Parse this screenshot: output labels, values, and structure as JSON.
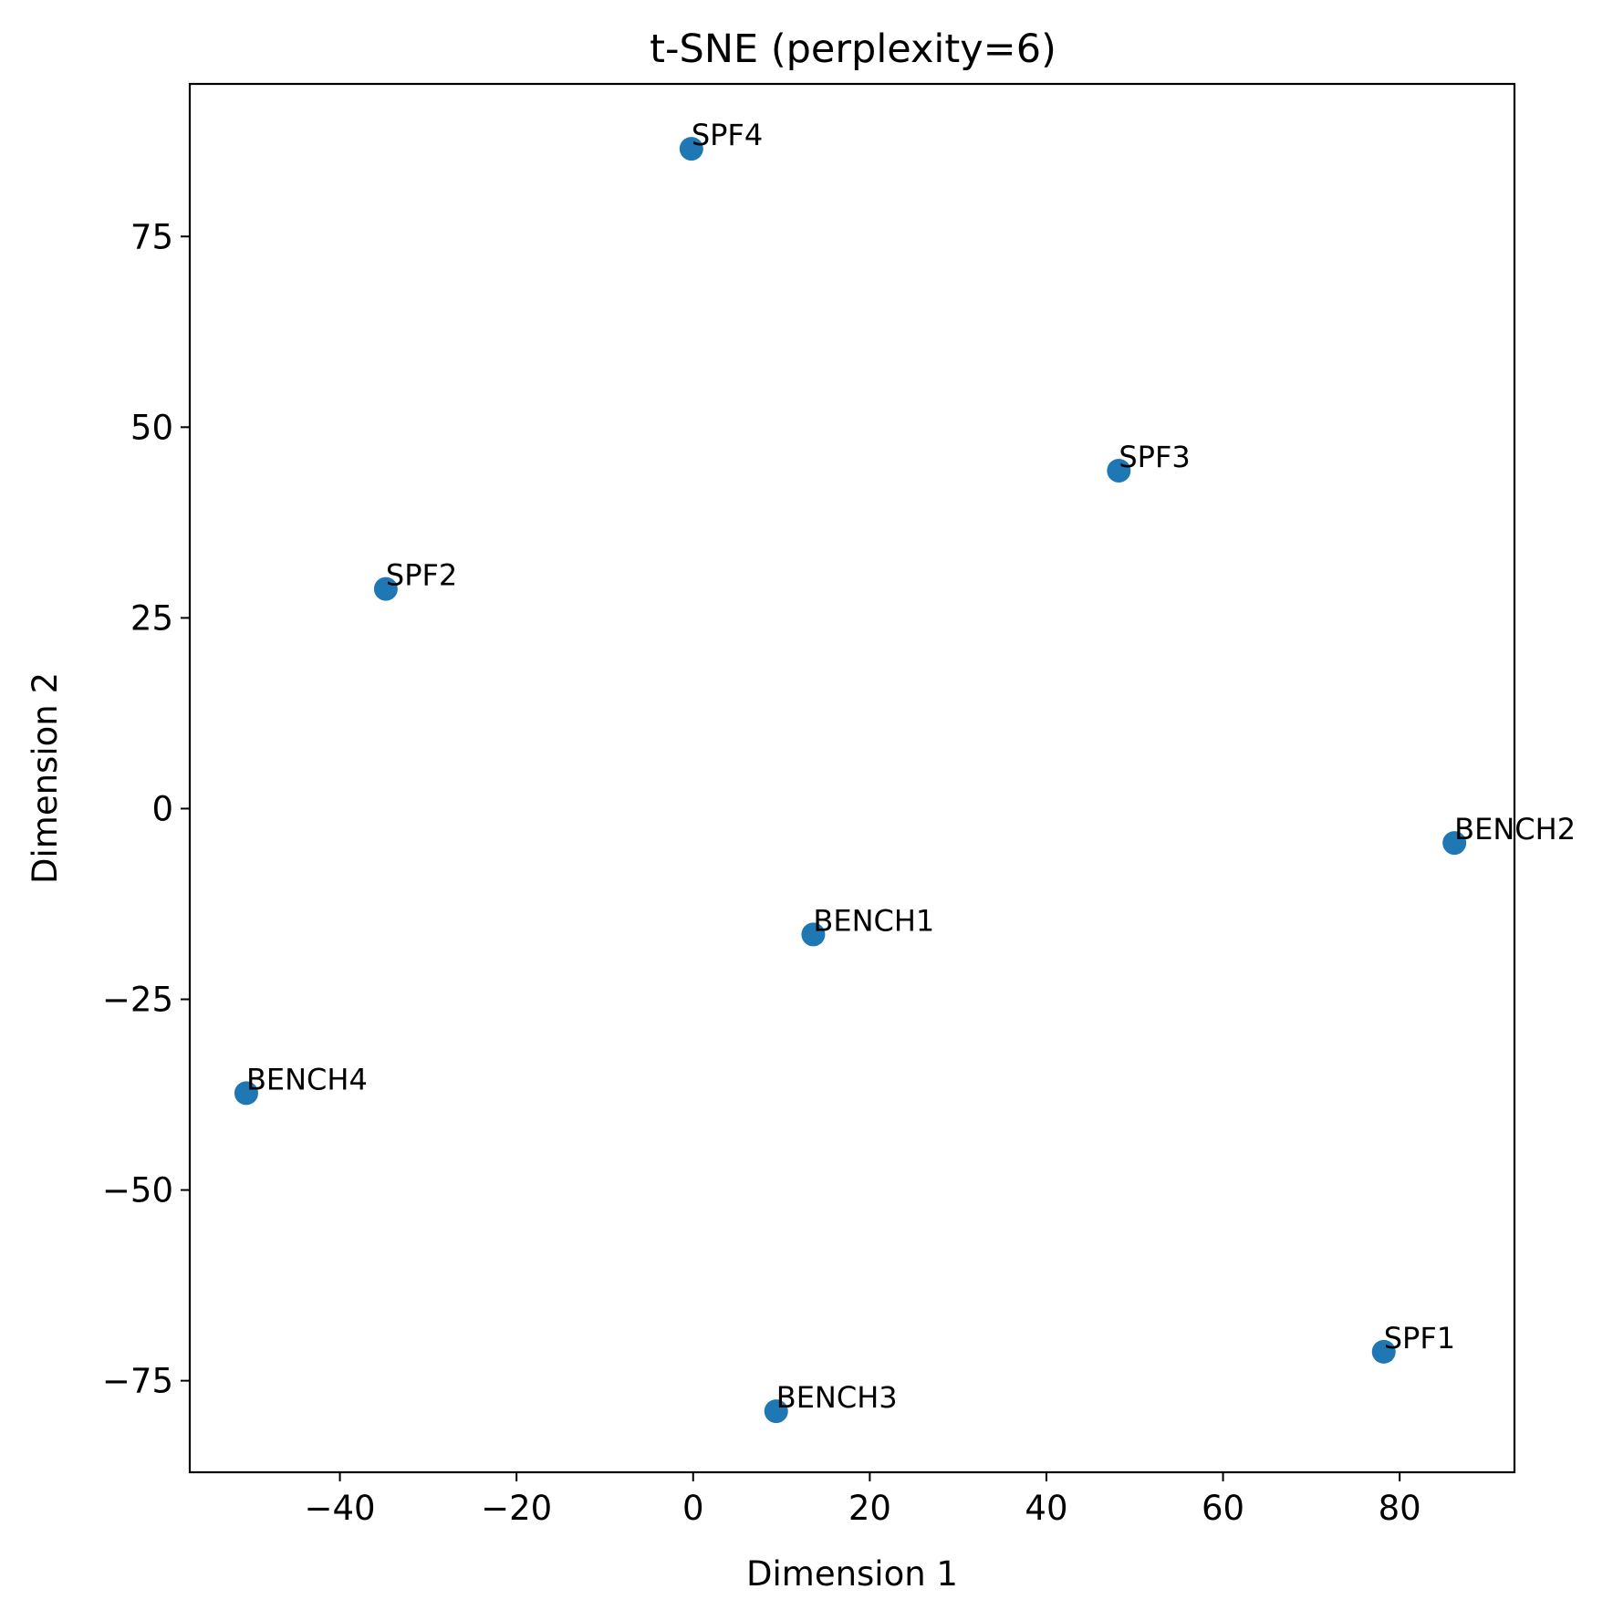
{
  "chart_data": {
    "type": "scatter",
    "title": "t-SNE (perplexity=6)",
    "xlabel": "Dimension 1",
    "ylabel": "Dimension 2",
    "xlim": [
      -57,
      93
    ],
    "ylim": [
      -87,
      95
    ],
    "xticks": [
      -40,
      -20,
      0,
      20,
      40,
      60,
      80
    ],
    "yticks": [
      -75,
      -50,
      -25,
      0,
      25,
      50,
      75
    ],
    "xtick_labels": [
      "−40",
      "−20",
      "0",
      "20",
      "40",
      "60",
      "80"
    ],
    "ytick_labels": [
      "−75",
      "−50",
      "−25",
      "0",
      "25",
      "50",
      "75"
    ],
    "grid": false,
    "marker_color": "#1f77b4",
    "points": [
      {
        "label": "SPF4",
        "x": -0.2,
        "y": 86.5
      },
      {
        "label": "SPF3",
        "x": 48.2,
        "y": 44.3
      },
      {
        "label": "SPF2",
        "x": -34.8,
        "y": 28.8
      },
      {
        "label": "BENCH2",
        "x": 86.2,
        "y": -4.5
      },
      {
        "label": "BENCH1",
        "x": 13.6,
        "y": -16.5
      },
      {
        "label": "BENCH4",
        "x": -50.6,
        "y": -37.3
      },
      {
        "label": "SPF1",
        "x": 78.2,
        "y": -71.2
      },
      {
        "label": "BENCH3",
        "x": 9.4,
        "y": -79.0
      }
    ]
  }
}
